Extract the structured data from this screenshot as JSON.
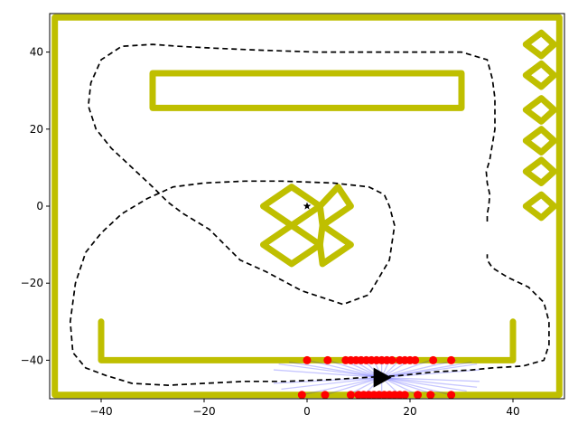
{
  "chart_data": {
    "type": "line",
    "title": "",
    "xlabel": "",
    "ylabel": "",
    "xlim": [
      -50,
      50
    ],
    "ylim": [
      -50,
      50
    ],
    "grid": false,
    "x_ticks": [
      -40,
      -20,
      0,
      20,
      40
    ],
    "y_ticks": [
      -40,
      -20,
      0,
      20,
      40
    ],
    "x_tick_labels": [
      "−40",
      "−20",
      "0",
      "20",
      "40"
    ],
    "y_tick_labels": [
      "−40",
      "−20",
      "0",
      "20",
      "40"
    ],
    "colors": {
      "walls": "#bfbf00",
      "path": "#000000",
      "lidar_hits": "#ff0000",
      "rays": "#0000ff",
      "robot": "#000000"
    },
    "walls": [
      {
        "name": "boundary",
        "points": [
          [
            -49,
            -49
          ],
          [
            49,
            -49
          ],
          [
            49,
            49
          ],
          [
            -49,
            49
          ],
          [
            -49,
            -49
          ]
        ]
      },
      {
        "name": "top-rectangle",
        "points": [
          [
            -30,
            25.5
          ],
          [
            30,
            25.5
          ],
          [
            30,
            34.5
          ],
          [
            -30,
            34.5
          ],
          [
            -30,
            25.5
          ]
        ]
      },
      {
        "name": "u-shape",
        "points": [
          [
            -40,
            -30
          ],
          [
            -40,
            -40
          ],
          [
            40,
            -40
          ],
          [
            40,
            -30
          ]
        ]
      },
      {
        "name": "cross-upper-left",
        "points": [
          [
            -8.5,
            0
          ],
          [
            -3,
            5
          ],
          [
            2.5,
            0
          ],
          [
            -3,
            -5
          ],
          [
            -8.5,
            0
          ]
        ]
      },
      {
        "name": "cross-upper-right",
        "points": [
          [
            2.5,
            0
          ],
          [
            6,
            5
          ],
          [
            8.5,
            0
          ],
          [
            3,
            -5
          ],
          [
            2.5,
            0
          ]
        ]
      },
      {
        "name": "cross-lower-left",
        "points": [
          [
            -8.5,
            -10
          ],
          [
            -3,
            -5
          ],
          [
            2.5,
            -10
          ],
          [
            -3,
            -15
          ],
          [
            -8.5,
            -10
          ]
        ]
      },
      {
        "name": "cross-lower-right",
        "points": [
          [
            2.5,
            -10
          ],
          [
            3,
            -5
          ],
          [
            8.5,
            -10
          ],
          [
            3,
            -15
          ],
          [
            2.5,
            -10
          ]
        ]
      },
      {
        "name": "diamond-1",
        "points": [
          [
            42.5,
            42
          ],
          [
            45.5,
            45
          ],
          [
            48,
            42
          ],
          [
            45.5,
            39
          ],
          [
            42.5,
            42
          ]
        ]
      },
      {
        "name": "diamond-2",
        "points": [
          [
            42.5,
            34
          ],
          [
            45.5,
            37
          ],
          [
            48,
            34
          ],
          [
            45.5,
            31
          ],
          [
            42.5,
            34
          ]
        ]
      },
      {
        "name": "diamond-3",
        "points": [
          [
            42.5,
            25
          ],
          [
            45.5,
            28
          ],
          [
            48,
            25
          ],
          [
            45.5,
            22
          ],
          [
            42.5,
            25
          ]
        ]
      },
      {
        "name": "diamond-4",
        "points": [
          [
            42.5,
            17
          ],
          [
            45.5,
            20
          ],
          [
            48,
            17
          ],
          [
            45.5,
            14
          ],
          [
            42.5,
            17
          ]
        ]
      },
      {
        "name": "diamond-5",
        "points": [
          [
            42.5,
            9
          ],
          [
            45.5,
            12
          ],
          [
            48,
            9
          ],
          [
            45.5,
            6
          ],
          [
            42.5,
            9
          ]
        ]
      },
      {
        "name": "diamond-6",
        "points": [
          [
            42.5,
            0
          ],
          [
            45.5,
            3
          ],
          [
            48,
            0
          ],
          [
            45.5,
            -3
          ],
          [
            42.5,
            0
          ]
        ]
      }
    ],
    "path": [
      [
        35,
        -4
      ],
      [
        35,
        -2
      ],
      [
        35.3,
        0
      ],
      [
        35.5,
        3
      ],
      [
        35,
        6
      ],
      [
        34.8,
        9
      ],
      [
        35.5,
        12
      ],
      [
        36.5,
        20
      ],
      [
        36.5,
        28
      ],
      [
        36,
        33
      ],
      [
        35,
        38
      ],
      [
        30,
        40
      ],
      [
        24,
        40
      ],
      [
        10,
        40
      ],
      [
        2,
        40
      ],
      [
        -9,
        40.5
      ],
      [
        -18,
        41
      ],
      [
        -25,
        41.5
      ],
      [
        -30,
        42
      ],
      [
        -36,
        41.5
      ],
      [
        -40,
        38
      ],
      [
        -42,
        32
      ],
      [
        -42.5,
        26
      ],
      [
        -41,
        20
      ],
      [
        -38,
        15
      ],
      [
        -34,
        10
      ],
      [
        -30,
        5
      ],
      [
        -27,
        1
      ],
      [
        -24,
        -2
      ],
      [
        -19,
        -6
      ],
      [
        -13,
        -14
      ],
      [
        -8,
        -17
      ],
      [
        -1,
        -22
      ],
      [
        7,
        -25.5
      ],
      [
        12,
        -23
      ],
      [
        16,
        -14
      ],
      [
        17,
        -5
      ],
      [
        16,
        0
      ],
      [
        15,
        3
      ],
      [
        12,
        5
      ],
      [
        5,
        6
      ],
      [
        -5,
        6.5
      ],
      [
        -12,
        6.5
      ],
      [
        -20,
        6
      ],
      [
        -26,
        5
      ],
      [
        -31,
        2
      ],
      [
        -36,
        -2
      ],
      [
        -40,
        -7
      ],
      [
        -43,
        -12
      ],
      [
        -45,
        -20
      ],
      [
        -46,
        -30
      ],
      [
        -45.5,
        -38
      ],
      [
        -43,
        -42
      ],
      [
        -39,
        -44
      ],
      [
        -34,
        -46
      ],
      [
        -27,
        -46.5
      ],
      [
        -20,
        -46
      ],
      [
        -12,
        -45.5
      ],
      [
        -4,
        -45.5
      ],
      [
        5,
        -45
      ],
      [
        11,
        -44.5
      ],
      [
        18,
        -44
      ],
      [
        25,
        -43
      ],
      [
        32,
        -42.5
      ],
      [
        36,
        -42
      ],
      [
        42,
        -41.5
      ],
      [
        46,
        -40
      ],
      [
        47,
        -36
      ],
      [
        47,
        -30
      ],
      [
        46,
        -25
      ],
      [
        43,
        -21
      ],
      [
        39,
        -18.5
      ],
      [
        36,
        -16
      ],
      [
        35,
        -14
      ],
      [
        35,
        -12.5
      ]
    ],
    "start_marker": {
      "x": 0,
      "y": 0,
      "symbol": "star"
    },
    "robot": {
      "x": 14.5,
      "y": -44.5,
      "heading_deg": 0
    },
    "lidar_hits": [
      {
        "x": 0,
        "y": -40
      },
      {
        "x": 4,
        "y": -40
      },
      {
        "x": 7.5,
        "y": -40
      },
      {
        "x": 8.5,
        "y": -40
      },
      {
        "x": 9.5,
        "y": -40
      },
      {
        "x": 10.5,
        "y": -40
      },
      {
        "x": 11.5,
        "y": -40
      },
      {
        "x": 12.5,
        "y": -40
      },
      {
        "x": 13.5,
        "y": -40
      },
      {
        "x": 14.5,
        "y": -40
      },
      {
        "x": 15.5,
        "y": -40
      },
      {
        "x": 16.5,
        "y": -40
      },
      {
        "x": 18,
        "y": -40
      },
      {
        "x": 19,
        "y": -40
      },
      {
        "x": 20,
        "y": -40
      },
      {
        "x": 21,
        "y": -40
      },
      {
        "x": 24.5,
        "y": -40
      },
      {
        "x": 28,
        "y": -40
      },
      {
        "x": -1,
        "y": -49
      },
      {
        "x": 3.5,
        "y": -49
      },
      {
        "x": 8.5,
        "y": -49
      },
      {
        "x": 10,
        "y": -49
      },
      {
        "x": 11,
        "y": -49
      },
      {
        "x": 12,
        "y": -49
      },
      {
        "x": 13,
        "y": -49
      },
      {
        "x": 14,
        "y": -49
      },
      {
        "x": 15,
        "y": -49
      },
      {
        "x": 16,
        "y": -49
      },
      {
        "x": 17,
        "y": -49
      },
      {
        "x": 18,
        "y": -49
      },
      {
        "x": 19,
        "y": -49
      },
      {
        "x": 21.5,
        "y": -49
      },
      {
        "x": 24,
        "y": -49
      },
      {
        "x": 28,
        "y": -49
      }
    ],
    "ray_endpoints": [
      [
        33.5,
        -42.5
      ],
      [
        33,
        -41
      ],
      [
        32,
        -40.5
      ],
      [
        29,
        -40
      ],
      [
        24,
        -40
      ],
      [
        20,
        -40
      ],
      [
        18,
        -40
      ],
      [
        16,
        -40
      ],
      [
        14.5,
        -40
      ],
      [
        13,
        -40
      ],
      [
        11,
        -40
      ],
      [
        9,
        -40
      ],
      [
        7,
        -40
      ],
      [
        4,
        -40
      ],
      [
        0,
        -40
      ],
      [
        -3.5,
        -40.5
      ],
      [
        -5.5,
        -41
      ],
      [
        -6.5,
        -42.5
      ],
      [
        -6.5,
        -46
      ],
      [
        -5,
        -47.5
      ],
      [
        -1,
        -49
      ],
      [
        3.5,
        -49
      ],
      [
        8,
        -49
      ],
      [
        11,
        -49
      ],
      [
        14.5,
        -49
      ],
      [
        18,
        -49
      ],
      [
        21.5,
        -49
      ],
      [
        25,
        -49
      ],
      [
        28,
        -49
      ],
      [
        31,
        -48
      ],
      [
        33,
        -47
      ],
      [
        33.5,
        -45.5
      ]
    ]
  }
}
